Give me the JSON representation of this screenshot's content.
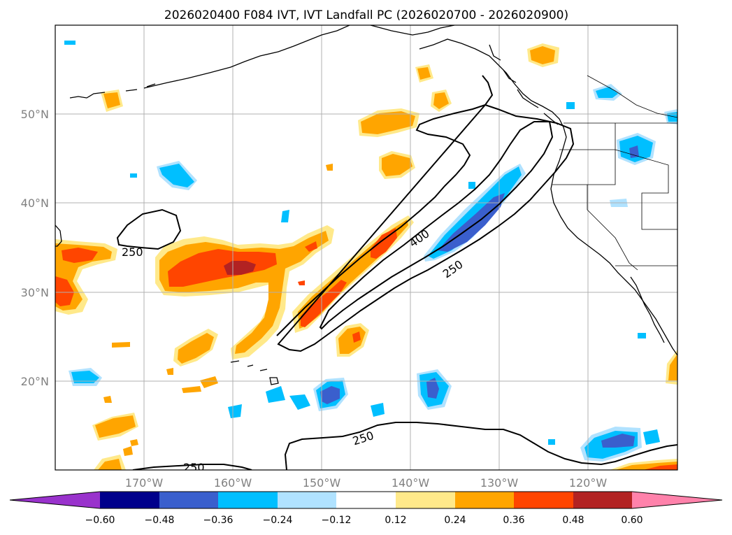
{
  "title": "2026020400 F084 IVT, IVT Landfall PC (2026020700 - 2026020900)",
  "latitude_labels": [
    "50°N",
    "40°N",
    "30°N",
    "20°N"
  ],
  "longitude_labels": [
    "170°W",
    "160°W",
    "150°W",
    "140°W",
    "130°W",
    "120°W"
  ],
  "colorbar": {
    "tick_labels": [
      "−0.60",
      "−0.48",
      "−0.36",
      "−0.24",
      "−0.12",
      "0.12",
      "0.24",
      "0.36",
      "0.48",
      "0.60"
    ],
    "colors": [
      "#9932cc",
      "#00008b",
      "#3a5fcd",
      "#00bfff",
      "#b0e2ff",
      "#ffffff",
      "#ffe98a",
      "#ffa500",
      "#ff4500",
      "#b22222",
      "#ff82ab"
    ]
  },
  "contour_labels": {
    "west_250": "250",
    "jet_400": "400",
    "jet_250": "250",
    "south_250": "250",
    "bottom_250": "250"
  },
  "colors": {
    "light_yellow": "#ffe98a",
    "orange": "#ffa500",
    "red_orange": "#ff4500",
    "dark_red": "#b22222",
    "light_blue": "#b0e2ff",
    "deep_sky": "#00bfff",
    "royal_blue": "#3a5fcd"
  }
}
